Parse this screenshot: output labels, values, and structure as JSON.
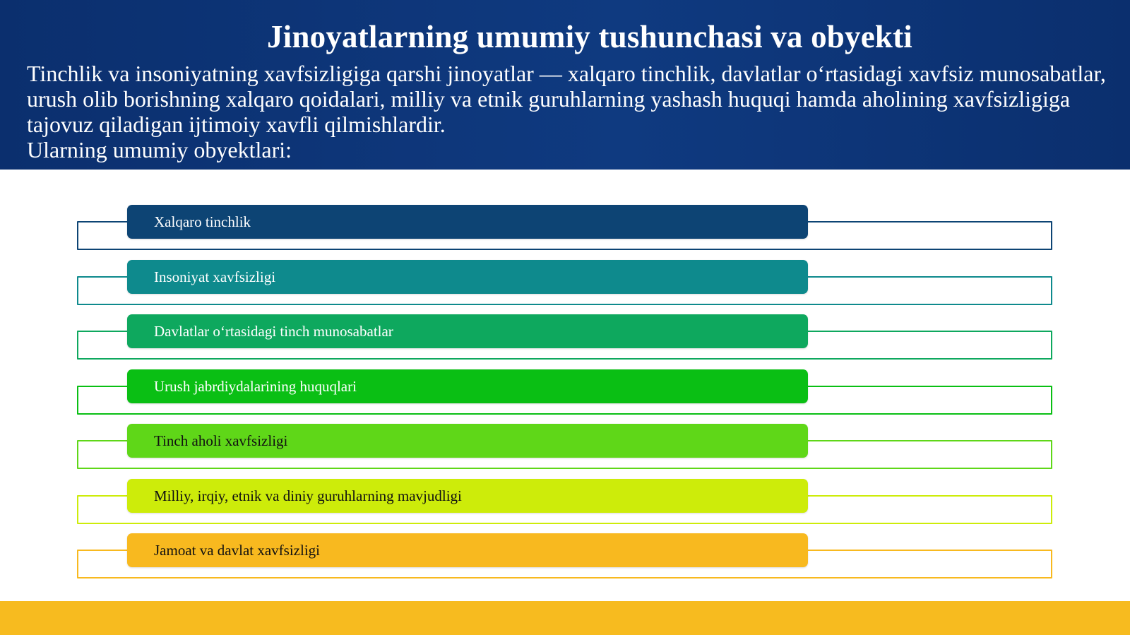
{
  "title": "Jinoyatlarning umumiy tushunchasi va obyekti",
  "intro": "Tinchlik va insoniyatning xavfsizligiga qarshi jinoyatlar — xalqaro tinchlik, davlatlar o‘rtasidagi xavfsiz munosabatlar, urush olib borishning xalqaro qoidalari, milliy va etnik guruhlarning yashash huquqi hamda aholining xavfsizligiga tajovuz qiladigan ijtimoiy xavfli qilmishlardir.",
  "objects_label": "Ularning umumiy obyektlari:",
  "items": [
    {
      "label": "Xalqaro tinchlik",
      "color": "#0d4474",
      "text_color": "#ffffff"
    },
    {
      "label": "Insoniyat xavfsizligi",
      "color": "#0e8a8d",
      "text_color": "#ffffff"
    },
    {
      "label": "Davlatlar o‘rtasidagi tinch munosabatlar",
      "color": "#0ea85e",
      "text_color": "#ffffff"
    },
    {
      "label": "Urush jabrdiydalarining huquqlari",
      "color": "#0abf14",
      "text_color": "#ffffff"
    },
    {
      "label": "Tinch aholi xavfsizligi",
      "color": "#5fd718",
      "text_color": "#111111"
    },
    {
      "label": "Milliy, irqiy, etnik va diniy guruhlarning mavjudligi",
      "color": "#cdec0a",
      "text_color": "#111111"
    },
    {
      "label": "Jamoat va davlat xavfsizligi",
      "color": "#f8b91f",
      "text_color": "#111111"
    }
  ],
  "colors": {
    "header_bg": "#0b2f6e",
    "footer_bg": "#f7bb1f"
  }
}
